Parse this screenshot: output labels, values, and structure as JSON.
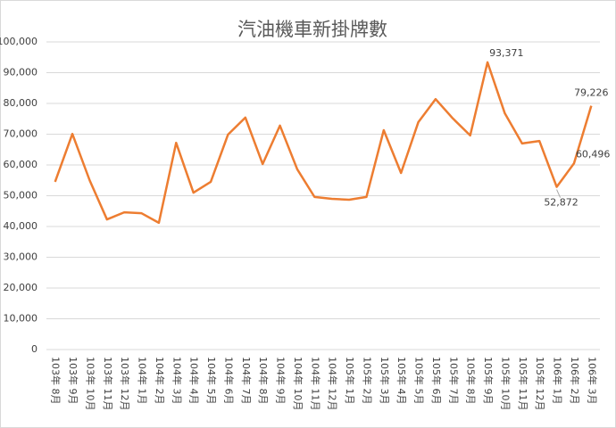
{
  "chart_data": {
    "type": "line",
    "title": "汽油機車新掛牌數",
    "categories": [
      "103年 8月",
      "103年 9月",
      "103年 10月",
      "103年 11月",
      "103年 12月",
      "104年 1月",
      "104年 2月",
      "104年 3月",
      "104年 4月",
      "104年 5月",
      "104年 6月",
      "104年 7月",
      "104年 8月",
      "104年 9月",
      "104年 10月",
      "104年 11月",
      "104年 12月",
      "105年 1月",
      "105年 2月",
      "105年 3月",
      "105年 4月",
      "105年 5月",
      "105年 6月",
      "105年 7月",
      "105年 8月",
      "105年 9月",
      "105年 10月",
      "105年 11月",
      "105年 12月",
      "106年 1月",
      "106年 2月",
      "106年 3月"
    ],
    "values": [
      54500,
      70100,
      55000,
      42300,
      44600,
      44300,
      41200,
      67200,
      51000,
      54500,
      69900,
      75400,
      60300,
      72800,
      58600,
      49600,
      49000,
      48700,
      49600,
      71300,
      57400,
      73900,
      81400,
      75100,
      69600,
      93371,
      76800,
      67000,
      67800,
      52872,
      60496,
      79226
    ],
    "value_labels": [
      null,
      null,
      null,
      null,
      null,
      null,
      null,
      null,
      null,
      null,
      null,
      null,
      null,
      null,
      null,
      null,
      null,
      null,
      null,
      null,
      null,
      null,
      null,
      null,
      null,
      "93,371",
      null,
      null,
      null,
      "52,872",
      "60,496",
      "79,226"
    ],
    "color": "#ed7d31",
    "ylim": [
      0,
      100000
    ],
    "yticks": [
      0,
      {
        "value": 10000,
        "label": "10,000"
      },
      {
        "value": 20000,
        "label": "20,000"
      },
      {
        "value": 30000,
        "label": "30,000"
      },
      {
        "value": 40000,
        "label": "40,000"
      },
      {
        "value": 50000,
        "label": "50,000"
      },
      {
        "value": 60000,
        "label": "60,000"
      },
      {
        "value": 70000,
        "label": "70,000"
      },
      {
        "value": 80000,
        "label": "80,000"
      },
      {
        "value": 90000,
        "label": "90,000"
      },
      {
        "value": 100000,
        "label": "100,000"
      }
    ],
    "grid": true
  }
}
